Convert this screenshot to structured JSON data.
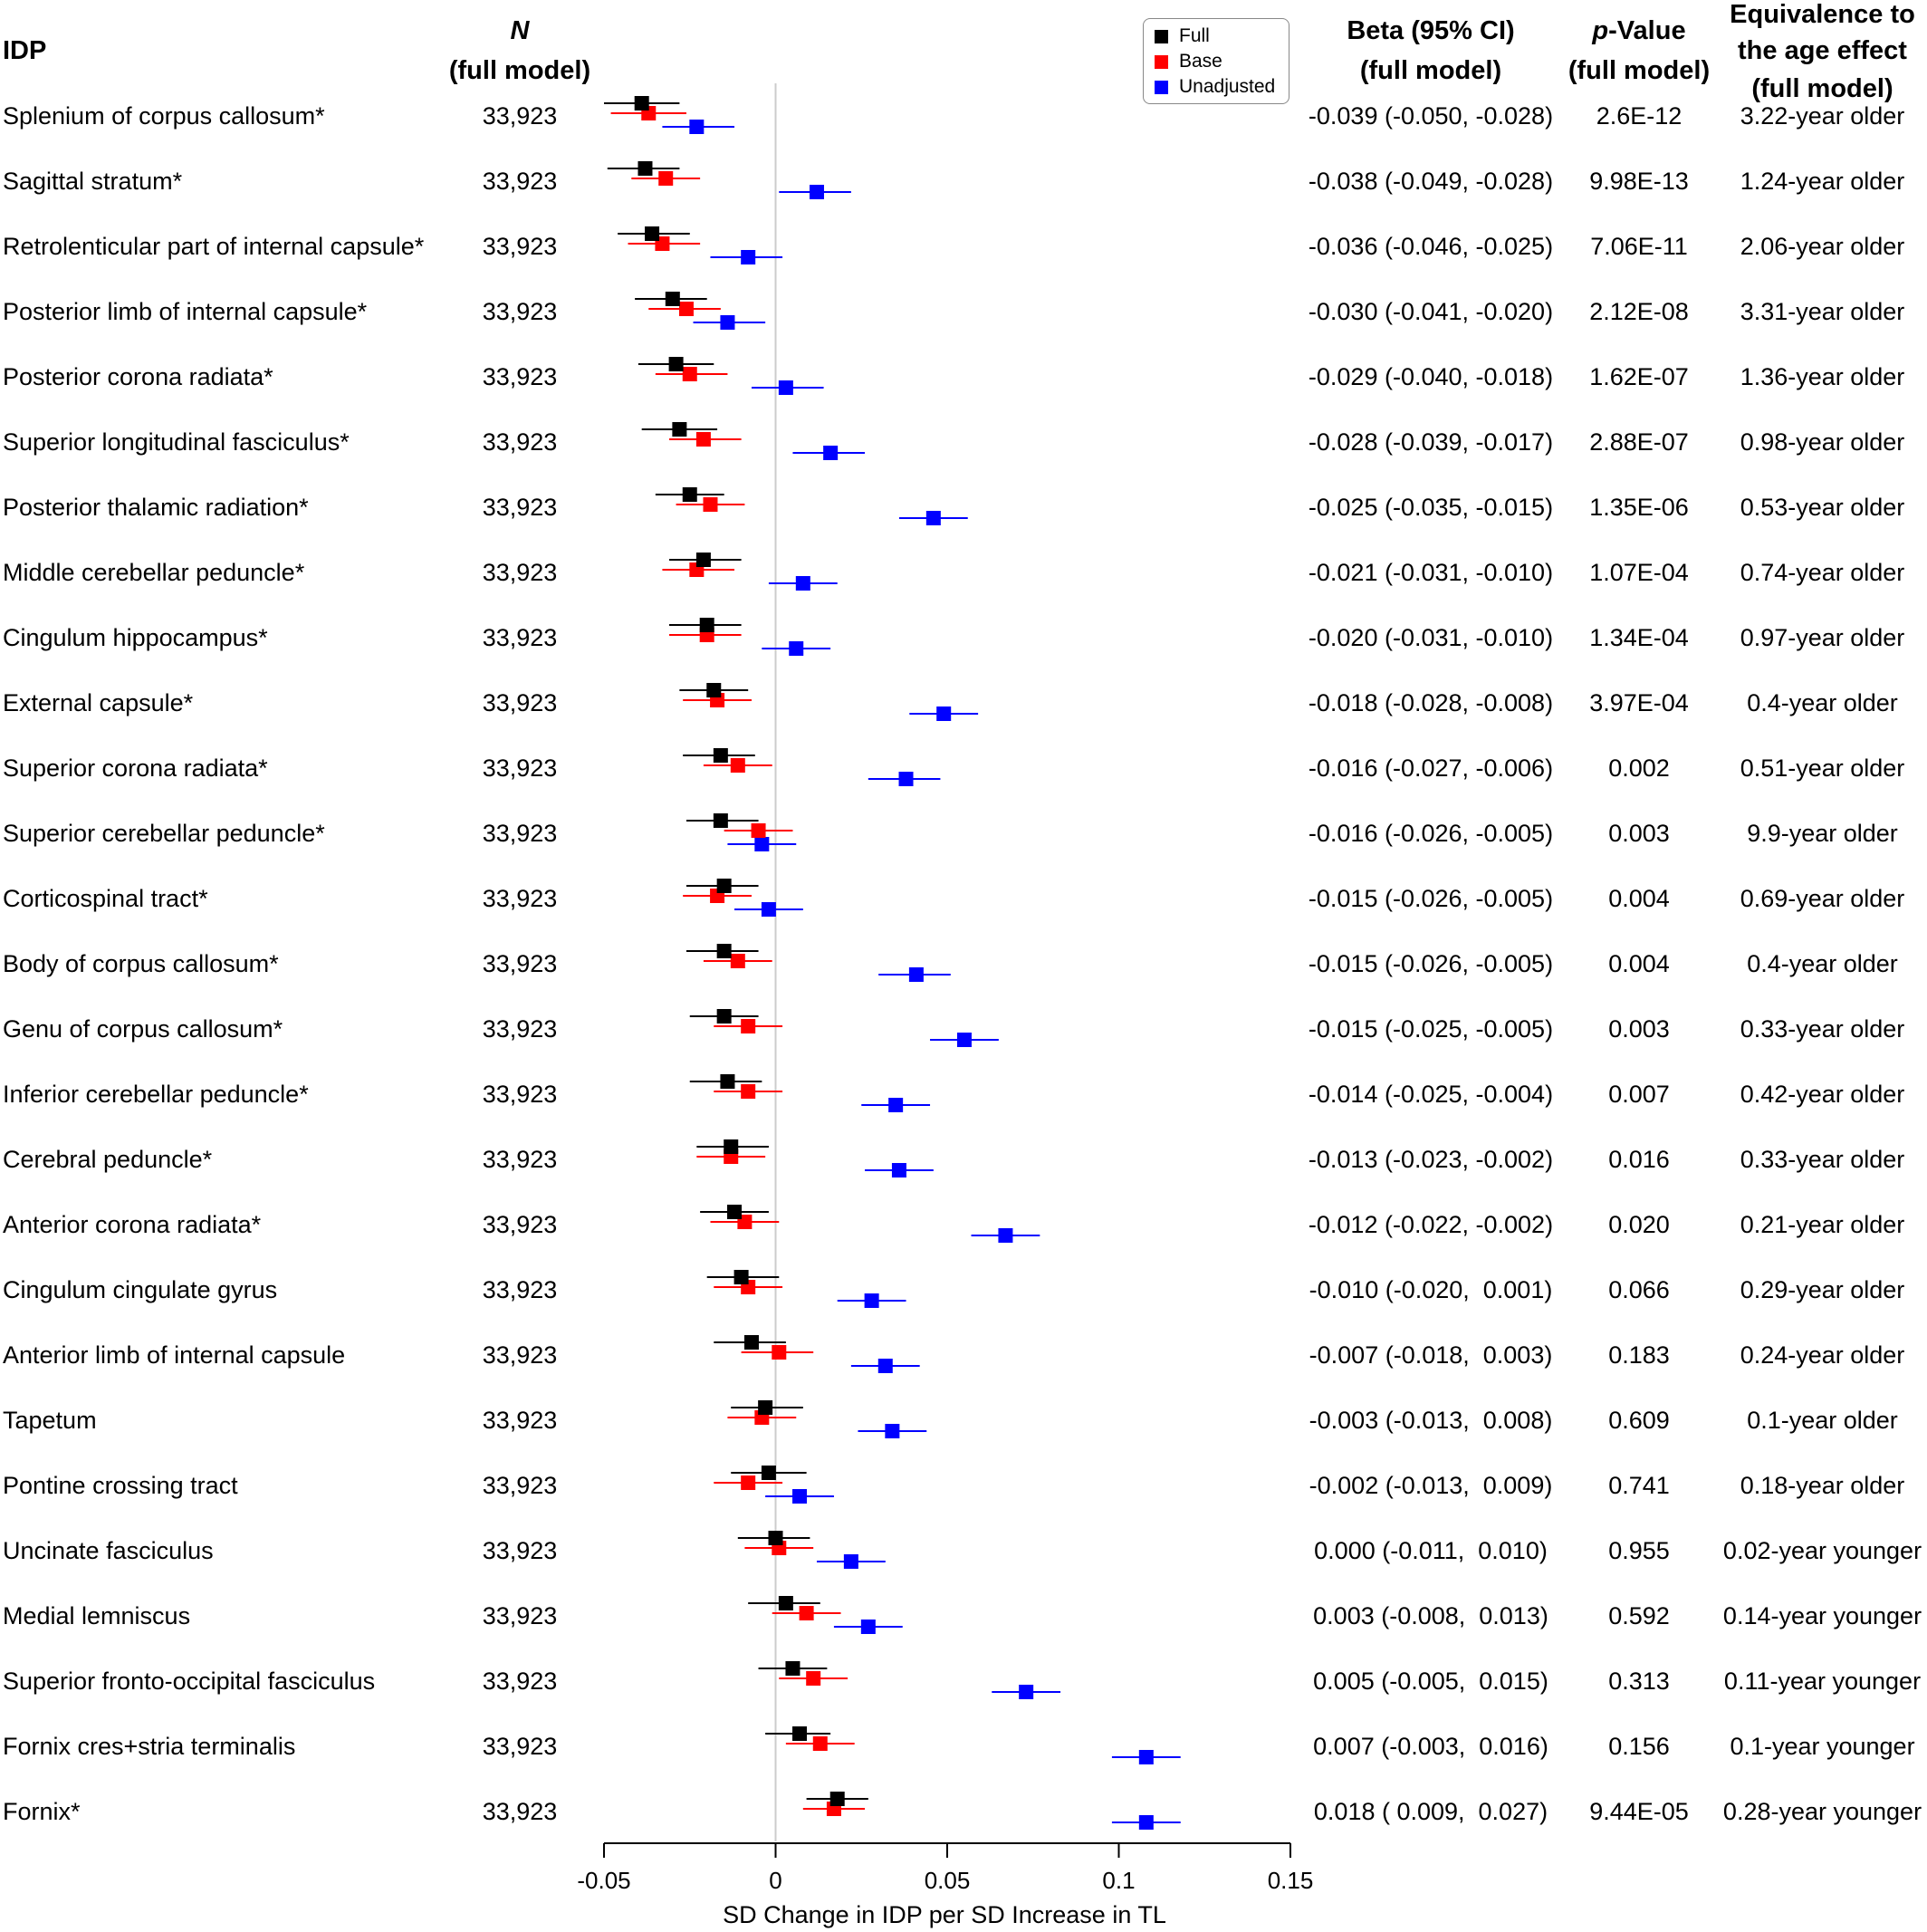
{
  "headers": {
    "idp": "IDP",
    "n_top": "N",
    "n_bottom": "(full model)",
    "beta_top": "Beta (95% CI)",
    "beta_bottom": "(full model)",
    "p_top": "p",
    "p_top_rest": "-Value",
    "p_bottom": "(full model)",
    "eq_line1": "Equivalence to",
    "eq_line2": "the age effect",
    "eq_line3": "(full model)"
  },
  "colors": {
    "full": "#000000",
    "base": "#ff0000",
    "unadjusted": "#0000ff",
    "zero_line": "#cccccc"
  },
  "chart_data": {
    "type": "forest",
    "xlabel": "SD Change in IDP per SD Increase in TL",
    "xlim": [
      -0.05,
      0.15
    ],
    "xticks": [
      -0.05,
      0,
      0.05,
      0.1,
      0.15
    ],
    "xtick_labels": [
      "-0.05",
      "0",
      "0.05",
      "0.1",
      "0.15"
    ],
    "legend": {
      "position": "top",
      "entries": [
        "Full",
        "Base",
        "Unadjusted"
      ]
    },
    "series_names": [
      "Full",
      "Base",
      "Unadjusted"
    ],
    "rows": [
      {
        "idp": "Splenium of corpus callosum*",
        "n": "33,923",
        "beta_ci": "-0.039 (-0.050, -0.028)",
        "p": "2.6E-12",
        "equiv": "3.22-year older",
        "full": [
          -0.039,
          -0.05,
          -0.028
        ],
        "base": [
          -0.037,
          -0.048,
          -0.026
        ],
        "unadj": [
          -0.023,
          -0.033,
          -0.012
        ]
      },
      {
        "idp": "Sagittal stratum*",
        "n": "33,923",
        "beta_ci": "-0.038 (-0.049, -0.028)",
        "p": "9.98E-13",
        "equiv": "1.24-year older",
        "full": [
          -0.038,
          -0.049,
          -0.028
        ],
        "base": [
          -0.032,
          -0.042,
          -0.022
        ],
        "unadj": [
          0.012,
          0.001,
          0.022
        ]
      },
      {
        "idp": "Retrolenticular part of internal capsule*",
        "n": "33,923",
        "beta_ci": "-0.036 (-0.046, -0.025)",
        "p": "7.06E-11",
        "equiv": "2.06-year older",
        "full": [
          -0.036,
          -0.046,
          -0.025
        ],
        "base": [
          -0.033,
          -0.043,
          -0.022
        ],
        "unadj": [
          -0.008,
          -0.019,
          0.002
        ]
      },
      {
        "idp": "Posterior limb of internal capsule*",
        "n": "33,923",
        "beta_ci": "-0.030 (-0.041, -0.020)",
        "p": "2.12E-08",
        "equiv": "3.31-year older",
        "full": [
          -0.03,
          -0.041,
          -0.02
        ],
        "base": [
          -0.026,
          -0.037,
          -0.016
        ],
        "unadj": [
          -0.014,
          -0.024,
          -0.003
        ]
      },
      {
        "idp": "Posterior corona radiata*",
        "n": "33,923",
        "beta_ci": "-0.029 (-0.040, -0.018)",
        "p": "1.62E-07",
        "equiv": "1.36-year older",
        "full": [
          -0.029,
          -0.04,
          -0.018
        ],
        "base": [
          -0.025,
          -0.035,
          -0.014
        ],
        "unadj": [
          0.003,
          -0.007,
          0.014
        ]
      },
      {
        "idp": "Superior longitudinal fasciculus*",
        "n": "33,923",
        "beta_ci": "-0.028 (-0.039, -0.017)",
        "p": "2.88E-07",
        "equiv": "0.98-year older",
        "full": [
          -0.028,
          -0.039,
          -0.017
        ],
        "base": [
          -0.021,
          -0.031,
          -0.01
        ],
        "unadj": [
          0.016,
          0.005,
          0.026
        ]
      },
      {
        "idp": "Posterior thalamic radiation*",
        "n": "33,923",
        "beta_ci": "-0.025 (-0.035, -0.015)",
        "p": "1.35E-06",
        "equiv": "0.53-year older",
        "full": [
          -0.025,
          -0.035,
          -0.015
        ],
        "base": [
          -0.019,
          -0.029,
          -0.009
        ],
        "unadj": [
          0.046,
          0.036,
          0.056
        ]
      },
      {
        "idp": "Middle cerebellar peduncle*",
        "n": "33,923",
        "beta_ci": "-0.021 (-0.031, -0.010)",
        "p": "1.07E-04",
        "equiv": "0.74-year older",
        "full": [
          -0.021,
          -0.031,
          -0.01
        ],
        "base": [
          -0.023,
          -0.033,
          -0.012
        ],
        "unadj": [
          0.008,
          -0.002,
          0.018
        ]
      },
      {
        "idp": "Cingulum hippocampus*",
        "n": "33,923",
        "beta_ci": "-0.020 (-0.031, -0.010)",
        "p": "1.34E-04",
        "equiv": "0.97-year older",
        "full": [
          -0.02,
          -0.031,
          -0.01
        ],
        "base": [
          -0.02,
          -0.031,
          -0.01
        ],
        "unadj": [
          0.006,
          -0.004,
          0.016
        ]
      },
      {
        "idp": "External capsule*",
        "n": "33,923",
        "beta_ci": "-0.018 (-0.028, -0.008)",
        "p": "3.97E-04",
        "equiv": "0.4-year older",
        "full": [
          -0.018,
          -0.028,
          -0.008
        ],
        "base": [
          -0.017,
          -0.027,
          -0.007
        ],
        "unadj": [
          0.049,
          0.039,
          0.059
        ]
      },
      {
        "idp": "Superior corona radiata*",
        "n": "33,923",
        "beta_ci": "-0.016 (-0.027, -0.006)",
        "p": "0.002",
        "equiv": "0.51-year older",
        "full": [
          -0.016,
          -0.027,
          -0.006
        ],
        "base": [
          -0.011,
          -0.021,
          -0.001
        ],
        "unadj": [
          0.038,
          0.027,
          0.048
        ]
      },
      {
        "idp": "Superior cerebellar peduncle*",
        "n": "33,923",
        "beta_ci": "-0.016 (-0.026, -0.005)",
        "p": "0.003",
        "equiv": "9.9-year older",
        "full": [
          -0.016,
          -0.026,
          -0.005
        ],
        "base": [
          -0.005,
          -0.015,
          0.005
        ],
        "unadj": [
          -0.004,
          -0.014,
          0.006
        ]
      },
      {
        "idp": "Corticospinal tract*",
        "n": "33,923",
        "beta_ci": "-0.015 (-0.026, -0.005)",
        "p": "0.004",
        "equiv": "0.69-year older",
        "full": [
          -0.015,
          -0.026,
          -0.005
        ],
        "base": [
          -0.017,
          -0.027,
          -0.007
        ],
        "unadj": [
          -0.002,
          -0.012,
          0.008
        ]
      },
      {
        "idp": "Body of corpus callosum*",
        "n": "33,923",
        "beta_ci": "-0.015 (-0.026, -0.005)",
        "p": "0.004",
        "equiv": "0.4-year older",
        "full": [
          -0.015,
          -0.026,
          -0.005
        ],
        "base": [
          -0.011,
          -0.021,
          -0.001
        ],
        "unadj": [
          0.041,
          0.03,
          0.051
        ]
      },
      {
        "idp": "Genu of corpus callosum*",
        "n": "33,923",
        "beta_ci": "-0.015 (-0.025, -0.005)",
        "p": "0.003",
        "equiv": "0.33-year older",
        "full": [
          -0.015,
          -0.025,
          -0.005
        ],
        "base": [
          -0.008,
          -0.018,
          0.002
        ],
        "unadj": [
          0.055,
          0.045,
          0.065
        ]
      },
      {
        "idp": "Inferior cerebellar peduncle*",
        "n": "33,923",
        "beta_ci": "-0.014 (-0.025, -0.004)",
        "p": "0.007",
        "equiv": "0.42-year older",
        "full": [
          -0.014,
          -0.025,
          -0.004
        ],
        "base": [
          -0.008,
          -0.018,
          0.002
        ],
        "unadj": [
          0.035,
          0.025,
          0.045
        ]
      },
      {
        "idp": "Cerebral peduncle*",
        "n": "33,923",
        "beta_ci": "-0.013 (-0.023, -0.002)",
        "p": "0.016",
        "equiv": "0.33-year older",
        "full": [
          -0.013,
          -0.023,
          -0.002
        ],
        "base": [
          -0.013,
          -0.023,
          -0.003
        ],
        "unadj": [
          0.036,
          0.026,
          0.046
        ]
      },
      {
        "idp": "Anterior corona radiata*",
        "n": "33,923",
        "beta_ci": "-0.012 (-0.022, -0.002)",
        "p": "0.020",
        "equiv": "0.21-year older",
        "full": [
          -0.012,
          -0.022,
          -0.002
        ],
        "base": [
          -0.009,
          -0.019,
          0.001
        ],
        "unadj": [
          0.067,
          0.057,
          0.077
        ]
      },
      {
        "idp": "Cingulum cingulate gyrus",
        "n": "33,923",
        "beta_ci": "-0.010 (-0.020,  0.001)",
        "p": "0.066",
        "equiv": "0.29-year older",
        "full": [
          -0.01,
          -0.02,
          0.001
        ],
        "base": [
          -0.008,
          -0.018,
          0.002
        ],
        "unadj": [
          0.028,
          0.018,
          0.038
        ]
      },
      {
        "idp": "Anterior limb of internal capsule",
        "n": "33,923",
        "beta_ci": "-0.007 (-0.018,  0.003)",
        "p": "0.183",
        "equiv": "0.24-year older",
        "full": [
          -0.007,
          -0.018,
          0.003
        ],
        "base": [
          0.001,
          -0.01,
          0.011
        ],
        "unadj": [
          0.032,
          0.022,
          0.042
        ]
      },
      {
        "idp": "Tapetum",
        "n": "33,923",
        "beta_ci": "-0.003 (-0.013,  0.008)",
        "p": "0.609",
        "equiv": "0.1-year older",
        "full": [
          -0.003,
          -0.013,
          0.008
        ],
        "base": [
          -0.004,
          -0.014,
          0.006
        ],
        "unadj": [
          0.034,
          0.024,
          0.044
        ]
      },
      {
        "idp": "Pontine crossing tract",
        "n": "33,923",
        "beta_ci": "-0.002 (-0.013,  0.009)",
        "p": "0.741",
        "equiv": "0.18-year older",
        "full": [
          -0.002,
          -0.013,
          0.009
        ],
        "base": [
          -0.008,
          -0.018,
          0.002
        ],
        "unadj": [
          0.007,
          -0.003,
          0.017
        ]
      },
      {
        "idp": "Uncinate fasciculus",
        "n": "33,923",
        "beta_ci": "0.000 (-0.011,  0.010)",
        "p": "0.955",
        "equiv": "0.02-year younger",
        "full": [
          0.0,
          -0.011,
          0.01
        ],
        "base": [
          0.001,
          -0.009,
          0.011
        ],
        "unadj": [
          0.022,
          0.012,
          0.032
        ]
      },
      {
        "idp": "Medial lemniscus",
        "n": "33,923",
        "beta_ci": "0.003 (-0.008,  0.013)",
        "p": "0.592",
        "equiv": "0.14-year younger",
        "full": [
          0.003,
          -0.008,
          0.013
        ],
        "base": [
          0.009,
          -0.001,
          0.019
        ],
        "unadj": [
          0.027,
          0.017,
          0.037
        ]
      },
      {
        "idp": "Superior fronto-occipital fasciculus",
        "n": "33,923",
        "beta_ci": "0.005 (-0.005,  0.015)",
        "p": "0.313",
        "equiv": "0.11-year younger",
        "full": [
          0.005,
          -0.005,
          0.015
        ],
        "base": [
          0.011,
          0.001,
          0.021
        ],
        "unadj": [
          0.073,
          0.063,
          0.083
        ]
      },
      {
        "idp": "Fornix cres+stria terminalis",
        "n": "33,923",
        "beta_ci": "0.007 (-0.003,  0.016)",
        "p": "0.156",
        "equiv": "0.1-year younger",
        "full": [
          0.007,
          -0.003,
          0.016
        ],
        "base": [
          0.013,
          0.003,
          0.023
        ],
        "unadj": [
          0.108,
          0.098,
          0.118
        ]
      },
      {
        "idp": "Fornix*",
        "n": "33,923",
        "beta_ci": "0.018 ( 0.009,  0.027)",
        "p": "9.44E-05",
        "equiv": "0.28-year younger",
        "full": [
          0.018,
          0.009,
          0.027
        ],
        "base": [
          0.017,
          0.008,
          0.026
        ],
        "unadj": [
          0.108,
          0.098,
          0.118
        ]
      }
    ]
  }
}
